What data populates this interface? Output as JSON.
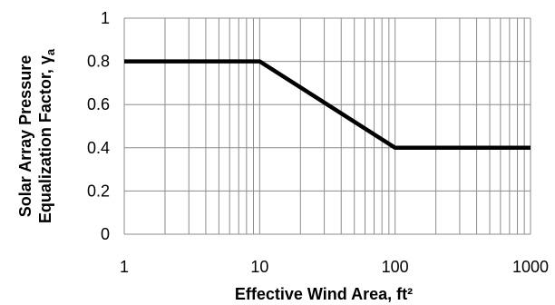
{
  "chart_data": {
    "type": "line",
    "x_scale": "log",
    "y_scale": "linear",
    "xlim": [
      1,
      1000
    ],
    "ylim": [
      0,
      1
    ],
    "x_ticks": [
      1,
      10,
      100,
      1000
    ],
    "x_tick_labels": [
      "1",
      "10",
      "100",
      "1000"
    ],
    "y_ticks": [
      0,
      0.2,
      0.4,
      0.6,
      0.8,
      1
    ],
    "y_tick_labels": [
      "0",
      "0.2",
      "0.4",
      "0.6",
      "0.8",
      "1"
    ],
    "grid": true,
    "x": [
      1,
      10,
      100,
      1000
    ],
    "y": [
      0.8,
      0.8,
      0.4,
      0.4
    ],
    "xlabel": "Effective Wind Area, ft²",
    "ylabel_line1": "Solar Array Pressure",
    "ylabel_line2_text": "Equalization Factor, γ",
    "ylabel_line2_subscript": "a",
    "line_color": "#000000",
    "grid_color": "#8c8c8c"
  }
}
